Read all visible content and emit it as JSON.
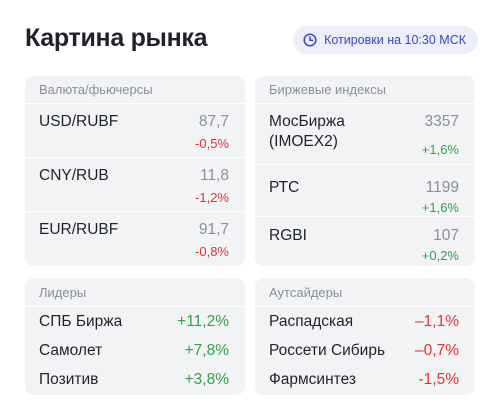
{
  "header": {
    "title": "Картина рынка",
    "badge": "Котировки на 10:30 МСК"
  },
  "colors": {
    "negative": "#e03437",
    "positive": "#2ea44a",
    "badge_bg": "#eceefa",
    "badge_text": "#3a4ab4",
    "panel_bg": "#f2f3f5"
  },
  "fx": {
    "heading": "Валюта/фьючерсы",
    "rows": [
      {
        "name": "USD/RUBF",
        "value": "87,7",
        "change": "-0,5%"
      },
      {
        "name": "CNY/RUB",
        "value": "11,8",
        "change": "-1,2%"
      },
      {
        "name": "EUR/RUBF",
        "value": "91,7",
        "change": "-0,8%"
      }
    ]
  },
  "indices": {
    "heading": "Биржевые индексы",
    "rows": [
      {
        "name": "МосБиржа (IMOEX2)",
        "value": "3357",
        "change": "+1,6%"
      },
      {
        "name": "РТС",
        "value": "1199",
        "change": "+1,6%"
      },
      {
        "name": "RGBI",
        "value": "107",
        "change": "+0,2%"
      }
    ]
  },
  "leaders": {
    "heading": "Лидеры",
    "rows": [
      {
        "name": "СПБ Биржа",
        "change": "+11,2%"
      },
      {
        "name": "Самолет",
        "change": "+7,8%"
      },
      {
        "name": "Позитив",
        "change": "+3,8%"
      }
    ]
  },
  "outsiders": {
    "heading": "Аутсайдеры",
    "rows": [
      {
        "name": "Распадская",
        "change": "–1,1%"
      },
      {
        "name": "Россети Сибирь",
        "change": "–0,7%"
      },
      {
        "name": "Фармсинтез",
        "change": "-1,5%"
      }
    ]
  }
}
